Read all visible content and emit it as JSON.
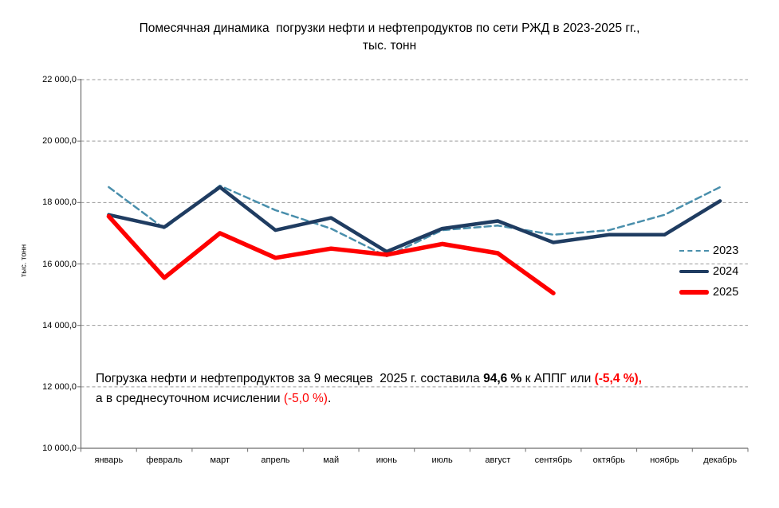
{
  "title": {
    "line1": "Помесячная динамика  погрузки нефти и нефтепродуктов по сети РЖД в 2023-2025 гг.,",
    "line2": "тыс. тонн"
  },
  "y_axis": {
    "title": "тыс. тонн",
    "tick_labels": [
      "22 000,0",
      "20 000,0",
      "18 000,0",
      "16 000,0",
      "14 000,0",
      "12 000,0",
      "10 000,0"
    ],
    "tick_values": [
      22000,
      20000,
      18000,
      16000,
      14000,
      12000,
      10000
    ]
  },
  "chart_data": {
    "type": "line",
    "title": "Помесячная динамика погрузки нефти и нефтепродуктов по сети РЖД в 2023-2025 гг., тыс. тонн",
    "ylabel": "тыс. тонн",
    "ylim": [
      10000,
      22000
    ],
    "y_step": 2000,
    "grid": "horizontal-dashed",
    "legend_position": "right",
    "categories": [
      "январь",
      "февраль",
      "март",
      "апрель",
      "май",
      "июнь",
      "июль",
      "август",
      "сентябрь",
      "октябрь",
      "ноябрь",
      "декабрь"
    ],
    "series": [
      {
        "name": "2023",
        "color": "#4a8fac",
        "line_style": "dashed",
        "line_width": 2.5,
        "values": [
          18500,
          17150,
          18550,
          17750,
          17150,
          16250,
          17100,
          17250,
          16950,
          17100,
          17600,
          18500
        ]
      },
      {
        "name": "2024",
        "color": "#1f3c61",
        "line_style": "solid",
        "line_width": 4.5,
        "values": [
          17600,
          17200,
          18500,
          17100,
          17500,
          16400,
          17150,
          17400,
          16700,
          16950,
          16950,
          18050
        ]
      },
      {
        "name": "2025",
        "color": "#fe0000",
        "line_style": "solid",
        "line_width": 5.5,
        "values": [
          17550,
          15550,
          17000,
          16200,
          16500,
          16300,
          16650,
          16350,
          15050,
          null,
          null,
          null
        ]
      }
    ]
  },
  "annotation": {
    "part1": "Погрузка нефти и нефтепродуктов за 9 месяцев  2025 г. составила ",
    "pct_bold": "94,6 %",
    "part2": " к АППГ или ",
    "delta1_red_bold": "(-5,4 %),",
    "part3": "а в среднесуточном исчислении ",
    "delta2_red": "(-5,0 %)",
    "part4": "."
  },
  "colors": {
    "background": "#ffffff",
    "gridline": "#999999",
    "axis": "#6e6e6e",
    "text": "#000000",
    "negative": "#ff0000"
  }
}
